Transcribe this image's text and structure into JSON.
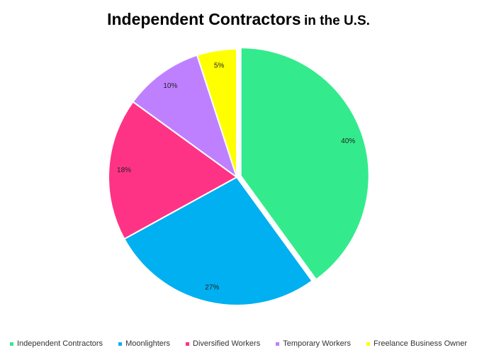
{
  "title": {
    "main": "Independent Contractors",
    "sub": "in the U.S."
  },
  "chart_data": {
    "type": "pie",
    "title": "Independent Contractors in the U.S.",
    "legend_position": "bottom",
    "exploded": "Independent Contractors",
    "slices": [
      {
        "name": "Independent Contractors",
        "value": 40,
        "label": "40%",
        "color": "#33eb8c"
      },
      {
        "name": "Moonlighters",
        "value": 27,
        "label": "27%",
        "color": "#00b0f0"
      },
      {
        "name": "Diversified Workers",
        "value": 18,
        "label": "18%",
        "color": "#ff3385"
      },
      {
        "name": "Temporary Workers",
        "value": 10,
        "label": "10%",
        "color": "#bf80ff"
      },
      {
        "name": "Freelance Business Owner",
        "value": 5,
        "label": "5%",
        "color": "#ffff00"
      }
    ]
  }
}
